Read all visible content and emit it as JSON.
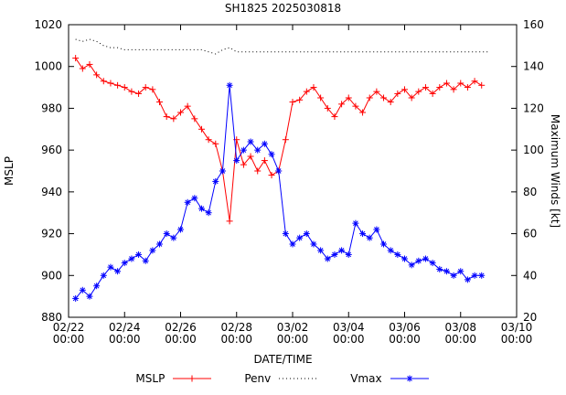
{
  "chart_data": {
    "type": "line",
    "title": "SH1825 2025030818",
    "xlabel": "DATE/TIME",
    "ylabel_left": "MSLP",
    "ylabel_right": "Maximum Winds [kt]",
    "axes": {
      "x_range_days": [
        0,
        16
      ],
      "x_tick_step_days": 2,
      "x_tick_labels": [
        [
          "02/22",
          "00:00"
        ],
        [
          "02/24",
          "00:00"
        ],
        [
          "02/26",
          "00:00"
        ],
        [
          "02/28",
          "00:00"
        ],
        [
          "03/02",
          "00:00"
        ],
        [
          "03/04",
          "00:00"
        ],
        [
          "03/06",
          "00:00"
        ],
        [
          "03/08",
          "00:00"
        ],
        [
          "03/10",
          "00:00"
        ]
      ],
      "left_range": [
        880,
        1020
      ],
      "left_ticks": [
        880,
        900,
        920,
        940,
        960,
        980,
        1000,
        1020
      ],
      "right_range": [
        20,
        160
      ],
      "right_ticks": [
        20,
        40,
        60,
        80,
        100,
        120,
        140,
        160
      ],
      "grid": false
    },
    "legend_position": "bottom-center",
    "series": [
      {
        "name": "MSLP",
        "axis": "left",
        "color": "#ff0000",
        "marker": "plus",
        "line": "solid",
        "x": [
          0.25,
          0.5,
          0.75,
          1,
          1.25,
          1.5,
          1.75,
          2,
          2.25,
          2.5,
          2.75,
          3,
          3.25,
          3.5,
          3.75,
          4,
          4.25,
          4.5,
          4.75,
          5,
          5.25,
          5.5,
          5.75,
          6,
          6.25,
          6.5,
          6.75,
          7,
          7.25,
          7.5,
          7.75,
          8,
          8.25,
          8.5,
          8.75,
          9,
          9.25,
          9.5,
          9.75,
          10,
          10.25,
          10.5,
          10.75,
          11,
          11.25,
          11.5,
          11.75,
          12,
          12.25,
          12.5,
          12.75,
          13,
          13.25,
          13.5,
          13.75,
          14,
          14.25,
          14.5,
          14.75
        ],
        "values": [
          1004,
          999,
          1001,
          996,
          993,
          992,
          991,
          990,
          988,
          987,
          990,
          989,
          983,
          976,
          975,
          978,
          981,
          975,
          970,
          965,
          963,
          950,
          926,
          965,
          953,
          957,
          950,
          955,
          948,
          950,
          965,
          983,
          984,
          988,
          990,
          985,
          980,
          976,
          982,
          985,
          981,
          978,
          985,
          988,
          985,
          983,
          987,
          989,
          985,
          988,
          990,
          987,
          990,
          992,
          989,
          992,
          990,
          993,
          991
        ]
      },
      {
        "name": "Penv",
        "axis": "left",
        "color": "#000000",
        "marker": "none",
        "line": "dotted",
        "x": [
          0.25,
          0.5,
          0.75,
          1,
          1.25,
          1.5,
          1.75,
          2,
          2.25,
          2.5,
          2.75,
          3,
          3.25,
          3.5,
          3.75,
          4,
          4.25,
          4.5,
          4.75,
          5,
          5.25,
          5.5,
          5.75,
          6,
          6.25,
          6.5,
          6.75,
          7,
          7.25,
          7.5,
          7.75,
          8,
          8.25,
          8.5,
          8.75,
          9,
          9.25,
          9.5,
          9.75,
          10,
          10.25,
          10.5,
          10.75,
          11,
          11.25,
          11.5,
          11.75,
          12,
          12.25,
          12.5,
          12.75,
          13,
          13.25,
          13.5,
          13.75,
          14,
          14.25,
          14.5,
          14.75,
          15
        ],
        "values": [
          1013,
          1012,
          1013,
          1012,
          1010,
          1009,
          1009,
          1008,
          1008,
          1008,
          1008,
          1008,
          1008,
          1008,
          1008,
          1008,
          1008,
          1008,
          1008,
          1007,
          1006,
          1008,
          1009,
          1007,
          1007,
          1007,
          1007,
          1007,
          1007,
          1007,
          1007,
          1007,
          1007,
          1007,
          1007,
          1007,
          1007,
          1007,
          1007,
          1007,
          1007,
          1007,
          1007,
          1007,
          1007,
          1007,
          1007,
          1007,
          1007,
          1007,
          1007,
          1007,
          1007,
          1007,
          1007,
          1007,
          1007,
          1007,
          1007,
          1007
        ]
      },
      {
        "name": "Vmax",
        "axis": "right",
        "color": "#0000ff",
        "marker": "asterisk",
        "line": "solid",
        "x": [
          0.25,
          0.5,
          0.75,
          1,
          1.25,
          1.5,
          1.75,
          2,
          2.25,
          2.5,
          2.75,
          3,
          3.25,
          3.5,
          3.75,
          4,
          4.25,
          4.5,
          4.75,
          5,
          5.25,
          5.5,
          5.75,
          6,
          6.25,
          6.5,
          6.75,
          7,
          7.25,
          7.5,
          7.75,
          8,
          8.25,
          8.5,
          8.75,
          9,
          9.25,
          9.5,
          9.75,
          10,
          10.25,
          10.5,
          10.75,
          11,
          11.25,
          11.5,
          11.75,
          12,
          12.25,
          12.5,
          12.75,
          13,
          13.25,
          13.5,
          13.75,
          14,
          14.25,
          14.5,
          14.75
        ],
        "values": [
          29,
          33,
          30,
          35,
          40,
          44,
          42,
          46,
          48,
          50,
          47,
          52,
          55,
          60,
          58,
          62,
          75,
          77,
          72,
          70,
          85,
          90,
          131,
          95,
          100,
          104,
          100,
          103,
          98,
          90,
          60,
          55,
          58,
          60,
          55,
          52,
          48,
          50,
          52,
          50,
          65,
          60,
          58,
          62,
          55,
          52,
          50,
          48,
          45,
          47,
          48,
          46,
          43,
          42,
          40,
          42,
          38,
          40,
          40
        ]
      }
    ]
  }
}
